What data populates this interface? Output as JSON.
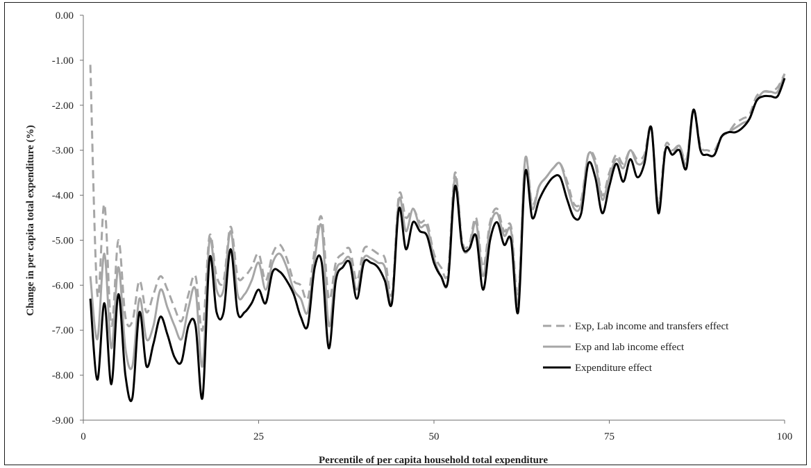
{
  "chart_data": {
    "type": "line",
    "xlabel": "Percentile of per capita household total expenditure",
    "ylabel": "Change in per capita total expenditure (%)",
    "xlim": [
      0,
      100
    ],
    "ylim": [
      -9,
      0
    ],
    "x_ticks": [
      "0",
      "25",
      "50",
      "75",
      "100"
    ],
    "y_ticks": [
      "0.00",
      "-1.00",
      "-2.00",
      "-3.00",
      "-4.00",
      "-5.00",
      "-6.00",
      "-7.00",
      "-8.00",
      "-9.00"
    ],
    "grid": false,
    "legend_position": "right-middle",
    "series": [
      {
        "name": "Exp, Lab income and transfers effect",
        "color": "#a6a6a6",
        "dash": "dashed",
        "points": [
          [
            1,
            -1.1
          ],
          [
            2,
            -6.2
          ],
          [
            3,
            -4.2
          ],
          [
            4,
            -6.9
          ],
          [
            5,
            -5.0
          ],
          [
            6,
            -6.7
          ],
          [
            7,
            -6.8
          ],
          [
            8,
            -5.9
          ],
          [
            9,
            -6.6
          ],
          [
            10,
            -6.2
          ],
          [
            11,
            -5.8
          ],
          [
            12,
            -6.1
          ],
          [
            13,
            -6.5
          ],
          [
            14,
            -6.8
          ],
          [
            15,
            -6.2
          ],
          [
            16,
            -5.8
          ],
          [
            17,
            -7.0
          ],
          [
            18,
            -4.9
          ],
          [
            19,
            -5.8
          ],
          [
            20,
            -5.9
          ],
          [
            21,
            -4.7
          ],
          [
            22,
            -5.8
          ],
          [
            23,
            -5.8
          ],
          [
            24,
            -5.6
          ],
          [
            25,
            -5.3
          ],
          [
            26,
            -5.9
          ],
          [
            27,
            -5.3
          ],
          [
            28,
            -5.1
          ],
          [
            29,
            -5.4
          ],
          [
            30,
            -5.9
          ],
          [
            31,
            -6.0
          ],
          [
            32,
            -6.3
          ],
          [
            33,
            -5.2
          ],
          [
            34,
            -4.5
          ],
          [
            35,
            -6.3
          ],
          [
            36,
            -5.5
          ],
          [
            37,
            -5.3
          ],
          [
            38,
            -5.2
          ],
          [
            39,
            -5.9
          ],
          [
            40,
            -5.2
          ],
          [
            41,
            -5.2
          ],
          [
            42,
            -5.3
          ],
          [
            43,
            -5.4
          ],
          [
            44,
            -6.2
          ],
          [
            45,
            -4.0
          ],
          [
            46,
            -4.5
          ],
          [
            47,
            -4.3
          ],
          [
            48,
            -4.6
          ],
          [
            49,
            -4.6
          ],
          [
            50,
            -5.3
          ],
          [
            51,
            -5.6
          ],
          [
            52,
            -5.7
          ],
          [
            53,
            -3.5
          ],
          [
            54,
            -5.0
          ],
          [
            55,
            -5.1
          ],
          [
            56,
            -4.5
          ],
          [
            57,
            -5.6
          ],
          [
            58,
            -4.6
          ],
          [
            59,
            -4.3
          ],
          [
            60,
            -4.8
          ],
          [
            61,
            -4.7
          ],
          [
            62,
            -6.2
          ],
          [
            63,
            -3.2
          ],
          [
            64,
            -4.2
          ],
          [
            65,
            -3.8
          ],
          [
            66,
            -3.6
          ],
          [
            67,
            -3.4
          ],
          [
            68,
            -3.3
          ],
          [
            69,
            -3.7
          ],
          [
            70,
            -4.2
          ],
          [
            71,
            -4.1
          ],
          [
            72,
            -3.1
          ],
          [
            73,
            -3.2
          ],
          [
            74,
            -4.0
          ],
          [
            75,
            -3.5
          ],
          [
            76,
            -3.1
          ],
          [
            77,
            -3.3
          ],
          [
            78,
            -3.0
          ],
          [
            79,
            -3.2
          ],
          [
            80,
            -3.1
          ],
          [
            81,
            -2.5
          ],
          [
            82,
            -4.2
          ],
          [
            83,
            -2.9
          ],
          [
            84,
            -3.0
          ],
          [
            85,
            -2.9
          ],
          [
            86,
            -3.2
          ],
          [
            87,
            -2.1
          ],
          [
            88,
            -2.9
          ],
          [
            89,
            -3.0
          ],
          [
            90,
            -3.0
          ],
          [
            91,
            -2.7
          ],
          [
            92,
            -2.6
          ],
          [
            93,
            -2.4
          ],
          [
            94,
            -2.3
          ],
          [
            95,
            -2.2
          ],
          [
            96,
            -1.8
          ],
          [
            97,
            -1.7
          ],
          [
            98,
            -1.7
          ],
          [
            99,
            -1.6
          ],
          [
            100,
            -1.3
          ]
        ]
      },
      {
        "name": "Exp and lab income effect",
        "color": "#a6a6a6",
        "dash": "solid",
        "points": [
          [
            1,
            -5.8
          ],
          [
            2,
            -7.2
          ],
          [
            3,
            -5.3
          ],
          [
            4,
            -7.4
          ],
          [
            5,
            -5.6
          ],
          [
            6,
            -7.4
          ],
          [
            7,
            -7.8
          ],
          [
            8,
            -6.3
          ],
          [
            9,
            -7.2
          ],
          [
            10,
            -6.9
          ],
          [
            11,
            -6.1
          ],
          [
            12,
            -6.5
          ],
          [
            13,
            -6.9
          ],
          [
            14,
            -7.2
          ],
          [
            15,
            -6.5
          ],
          [
            16,
            -6.1
          ],
          [
            17,
            -7.8
          ],
          [
            18,
            -5.0
          ],
          [
            19,
            -6.1
          ],
          [
            20,
            -6.1
          ],
          [
            21,
            -4.8
          ],
          [
            22,
            -6.2
          ],
          [
            23,
            -6.2
          ],
          [
            24,
            -5.9
          ],
          [
            25,
            -5.5
          ],
          [
            26,
            -6.1
          ],
          [
            27,
            -5.5
          ],
          [
            28,
            -5.3
          ],
          [
            29,
            -5.6
          ],
          [
            30,
            -6.1
          ],
          [
            31,
            -6.3
          ],
          [
            32,
            -6.6
          ],
          [
            33,
            -5.4
          ],
          [
            34,
            -4.7
          ],
          [
            35,
            -6.9
          ],
          [
            36,
            -5.7
          ],
          [
            37,
            -5.5
          ],
          [
            38,
            -5.4
          ],
          [
            39,
            -6.1
          ],
          [
            40,
            -5.4
          ],
          [
            41,
            -5.4
          ],
          [
            42,
            -5.5
          ],
          [
            43,
            -5.6
          ],
          [
            44,
            -6.4
          ],
          [
            45,
            -4.1
          ],
          [
            46,
            -4.8
          ],
          [
            47,
            -4.3
          ],
          [
            48,
            -4.7
          ],
          [
            49,
            -4.7
          ],
          [
            50,
            -5.4
          ],
          [
            51,
            -5.8
          ],
          [
            52,
            -5.9
          ],
          [
            53,
            -3.6
          ],
          [
            54,
            -5.1
          ],
          [
            55,
            -5.2
          ],
          [
            56,
            -4.6
          ],
          [
            57,
            -5.8
          ],
          [
            58,
            -4.7
          ],
          [
            59,
            -4.4
          ],
          [
            60,
            -4.9
          ],
          [
            61,
            -4.8
          ],
          [
            62,
            -6.4
          ],
          [
            63,
            -3.2
          ],
          [
            64,
            -4.3
          ],
          [
            65,
            -3.8
          ],
          [
            66,
            -3.6
          ],
          [
            67,
            -3.4
          ],
          [
            68,
            -3.3
          ],
          [
            69,
            -3.8
          ],
          [
            70,
            -4.3
          ],
          [
            71,
            -4.2
          ],
          [
            72,
            -3.1
          ],
          [
            73,
            -3.3
          ],
          [
            74,
            -4.1
          ],
          [
            75,
            -3.6
          ],
          [
            76,
            -3.2
          ],
          [
            77,
            -3.4
          ],
          [
            78,
            -3.0
          ],
          [
            79,
            -3.3
          ],
          [
            80,
            -3.2
          ],
          [
            81,
            -2.5
          ],
          [
            82,
            -4.3
          ],
          [
            83,
            -3.0
          ],
          [
            84,
            -3.1
          ],
          [
            85,
            -2.9
          ],
          [
            86,
            -3.3
          ],
          [
            87,
            -2.1
          ],
          [
            88,
            -3.0
          ],
          [
            89,
            -3.1
          ],
          [
            90,
            -3.1
          ],
          [
            91,
            -2.7
          ],
          [
            92,
            -2.6
          ],
          [
            93,
            -2.5
          ],
          [
            94,
            -2.4
          ],
          [
            95,
            -2.3
          ],
          [
            96,
            -1.9
          ],
          [
            97,
            -1.7
          ],
          [
            98,
            -1.7
          ],
          [
            99,
            -1.7
          ],
          [
            100,
            -1.3
          ]
        ]
      },
      {
        "name": "Expenditure effect",
        "color": "#000000",
        "dash": "solid",
        "points": [
          [
            1,
            -6.3
          ],
          [
            2,
            -8.1
          ],
          [
            3,
            -6.4
          ],
          [
            4,
            -8.2
          ],
          [
            5,
            -6.2
          ],
          [
            6,
            -8.0
          ],
          [
            7,
            -8.5
          ],
          [
            8,
            -6.6
          ],
          [
            9,
            -7.8
          ],
          [
            10,
            -7.3
          ],
          [
            11,
            -6.7
          ],
          [
            12,
            -7.1
          ],
          [
            13,
            -7.6
          ],
          [
            14,
            -7.7
          ],
          [
            15,
            -6.9
          ],
          [
            16,
            -6.9
          ],
          [
            17,
            -8.5
          ],
          [
            18,
            -5.4
          ],
          [
            19,
            -6.6
          ],
          [
            20,
            -6.6
          ],
          [
            21,
            -5.2
          ],
          [
            22,
            -6.6
          ],
          [
            23,
            -6.6
          ],
          [
            24,
            -6.4
          ],
          [
            25,
            -6.1
          ],
          [
            26,
            -6.4
          ],
          [
            27,
            -5.7
          ],
          [
            28,
            -5.7
          ],
          [
            29,
            -5.9
          ],
          [
            30,
            -6.2
          ],
          [
            31,
            -6.7
          ],
          [
            32,
            -6.9
          ],
          [
            33,
            -5.6
          ],
          [
            34,
            -5.5
          ],
          [
            35,
            -7.4
          ],
          [
            36,
            -5.9
          ],
          [
            37,
            -5.6
          ],
          [
            38,
            -5.5
          ],
          [
            39,
            -6.3
          ],
          [
            40,
            -5.5
          ],
          [
            41,
            -5.5
          ],
          [
            42,
            -5.6
          ],
          [
            43,
            -5.9
          ],
          [
            44,
            -6.4
          ],
          [
            45,
            -4.3
          ],
          [
            46,
            -5.2
          ],
          [
            47,
            -4.6
          ],
          [
            48,
            -4.8
          ],
          [
            49,
            -4.9
          ],
          [
            50,
            -5.5
          ],
          [
            51,
            -5.8
          ],
          [
            52,
            -5.9
          ],
          [
            53,
            -3.8
          ],
          [
            54,
            -5.1
          ],
          [
            55,
            -5.2
          ],
          [
            56,
            -4.9
          ],
          [
            57,
            -6.1
          ],
          [
            58,
            -5.0
          ],
          [
            59,
            -4.6
          ],
          [
            60,
            -5.1
          ],
          [
            61,
            -5.0
          ],
          [
            62,
            -6.6
          ],
          [
            63,
            -3.5
          ],
          [
            64,
            -4.5
          ],
          [
            65,
            -4.1
          ],
          [
            66,
            -3.8
          ],
          [
            67,
            -3.6
          ],
          [
            68,
            -3.6
          ],
          [
            69,
            -4.1
          ],
          [
            70,
            -4.5
          ],
          [
            71,
            -4.4
          ],
          [
            72,
            -3.3
          ],
          [
            73,
            -3.6
          ],
          [
            74,
            -4.4
          ],
          [
            75,
            -3.8
          ],
          [
            76,
            -3.3
          ],
          [
            77,
            -3.7
          ],
          [
            78,
            -3.2
          ],
          [
            79,
            -3.6
          ],
          [
            80,
            -3.3
          ],
          [
            81,
            -2.5
          ],
          [
            82,
            -4.4
          ],
          [
            83,
            -3.0
          ],
          [
            84,
            -3.1
          ],
          [
            85,
            -3.0
          ],
          [
            86,
            -3.4
          ],
          [
            87,
            -2.1
          ],
          [
            88,
            -3.0
          ],
          [
            89,
            -3.1
          ],
          [
            90,
            -3.1
          ],
          [
            91,
            -2.7
          ],
          [
            92,
            -2.6
          ],
          [
            93,
            -2.6
          ],
          [
            94,
            -2.5
          ],
          [
            95,
            -2.3
          ],
          [
            96,
            -1.9
          ],
          [
            97,
            -1.8
          ],
          [
            98,
            -1.8
          ],
          [
            99,
            -1.8
          ],
          [
            100,
            -1.4
          ]
        ]
      }
    ]
  }
}
